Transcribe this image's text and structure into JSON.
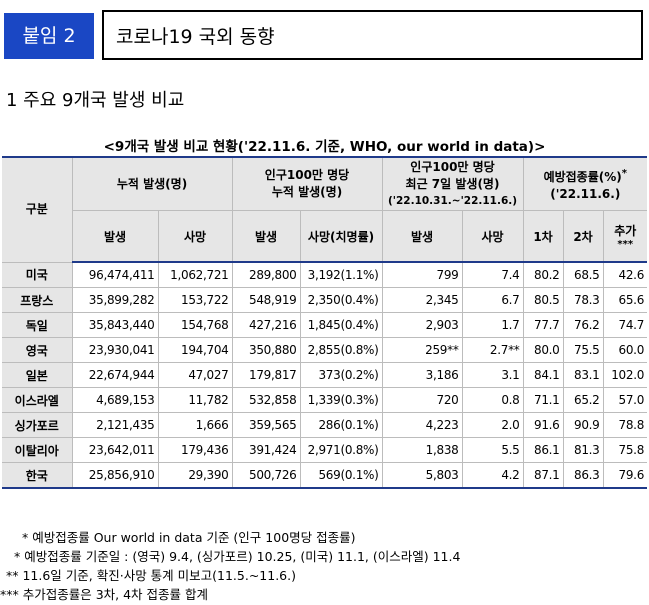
{
  "header": {
    "badge": "붙임 2",
    "title": "코로나19 국외 동향"
  },
  "section_title": "1  주요 9개국 발생 비교",
  "table": {
    "caption": "<9개국 발생 비교 현황('22.11.6. 기준, WHO, our world in data)>",
    "head": {
      "category": "구분",
      "cumulative": "누적 발생(명)",
      "per_million_line1": "인구100만 명당",
      "per_million_line2": "누적 발생(명)",
      "recent_line1": "인구100만 명당",
      "recent_line2": "최근 7일 발생(명)",
      "recent_line3": "('22.10.31.~'22.11.6.)",
      "vacc_line1": "예방접종률(%)",
      "vacc_mark": "*",
      "vacc_line2": "('22.11.6.)",
      "sub_cases": "발생",
      "sub_deaths": "사망",
      "sub_pm_cases": "발생",
      "sub_pm_deaths": "사망(치명률)",
      "sub_r_cases": "발생",
      "sub_r_deaths": "사망",
      "sub_dose1": "1차",
      "sub_dose2": "2차",
      "sub_booster_line1": "추가",
      "sub_booster_line2": "***"
    },
    "rows": [
      {
        "country": "미국",
        "cases": "96,474,411",
        "deaths": "1,062,721",
        "pm_cases": "289,800",
        "pm_deaths": "3,192(1.1%)",
        "r_cases": "799",
        "r_deaths": "7.4",
        "dose1": "80.2",
        "dose2": "68.5",
        "booster": "42.6"
      },
      {
        "country": "프랑스",
        "cases": "35,899,282",
        "deaths": "153,722",
        "pm_cases": "548,919",
        "pm_deaths": "2,350(0.4%)",
        "r_cases": "2,345",
        "r_deaths": "6.7",
        "dose1": "80.5",
        "dose2": "78.3",
        "booster": "65.6"
      },
      {
        "country": "독일",
        "cases": "35,843,440",
        "deaths": "154,768",
        "pm_cases": "427,216",
        "pm_deaths": "1,845(0.4%)",
        "r_cases": "2,903",
        "r_deaths": "1.7",
        "dose1": "77.7",
        "dose2": "76.2",
        "booster": "74.7"
      },
      {
        "country": "영국",
        "cases": "23,930,041",
        "deaths": "194,704",
        "pm_cases": "350,880",
        "pm_deaths": "2,855(0.8%)",
        "r_cases": "259**",
        "r_deaths": "2.7**",
        "dose1": "80.0",
        "dose2": "75.5",
        "booster": "60.0"
      },
      {
        "country": "일본",
        "cases": "22,674,944",
        "deaths": "47,027",
        "pm_cases": "179,817",
        "pm_deaths": "373(0.2%)",
        "r_cases": "3,186",
        "r_deaths": "3.1",
        "dose1": "84.1",
        "dose2": "83.1",
        "booster": "102.0"
      },
      {
        "country": "이스라엘",
        "cases": "4,689,153",
        "deaths": "11,782",
        "pm_cases": "532,858",
        "pm_deaths": "1,339(0.3%)",
        "r_cases": "720",
        "r_deaths": "0.8",
        "dose1": "71.1",
        "dose2": "65.2",
        "booster": "57.0"
      },
      {
        "country": "싱가포르",
        "cases": "2,121,435",
        "deaths": "1,666",
        "pm_cases": "359,565",
        "pm_deaths": "286(0.1%)",
        "r_cases": "4,223",
        "r_deaths": "2.0",
        "dose1": "91.6",
        "dose2": "90.9",
        "booster": "78.8"
      },
      {
        "country": "이탈리아",
        "cases": "23,642,011",
        "deaths": "179,436",
        "pm_cases": "391,424",
        "pm_deaths": "2,971(0.8%)",
        "r_cases": "1,838",
        "r_deaths": "5.5",
        "dose1": "86.1",
        "dose2": "81.3",
        "booster": "75.8"
      },
      {
        "country": "한국",
        "cases": "25,856,910",
        "deaths": "29,390",
        "pm_cases": "500,726",
        "pm_deaths": "569(0.1%)",
        "r_cases": "5,803",
        "r_deaths": "4.2",
        "dose1": "87.1",
        "dose2": "86.3",
        "booster": "79.6"
      }
    ]
  },
  "notes": [
    "* 예방접종률 Our world in data 기준 (인구 100명당 접종률)",
    "* 예방접종률 기준일 : (영국) 9.4, (싱가포르) 10.25, (미국) 11.1, (이스라엘) 11.4",
    "** 11.6일 기준, 확진·사망 통계 미보고(11.5.~11.6.)",
    "*** 추가접종률은 3차, 4차 접종률 합계"
  ]
}
